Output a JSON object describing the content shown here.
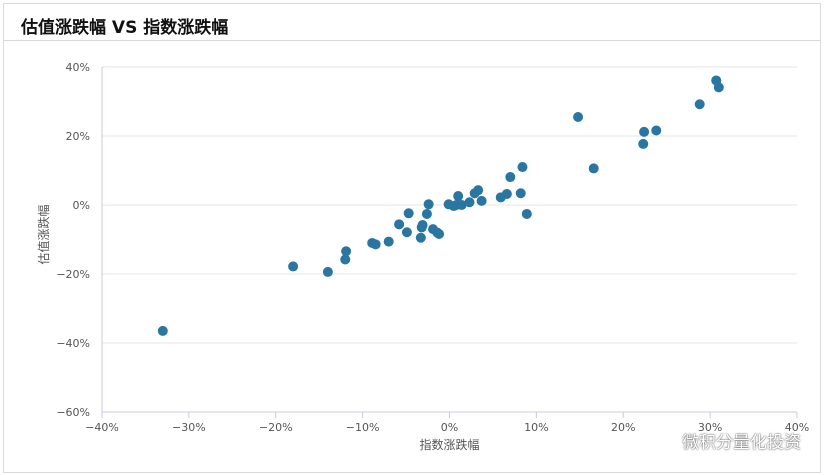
{
  "header": {
    "title": "估值涨跌幅 VS 指数涨跌幅"
  },
  "watermark": {
    "text": "微积分量化投资",
    "icon": "wechat-icon"
  },
  "colors": {
    "point": "#2a76a0",
    "grid": "#e6e6e6",
    "axis": "#c8cbe0"
  },
  "chart_data": {
    "type": "scatter",
    "title": "估值涨跌幅 VS 指数涨跌幅",
    "xlabel": "指数涨跌幅",
    "ylabel": "估值涨跌幅",
    "xlim": [
      -40,
      40
    ],
    "ylim": [
      -60,
      40
    ],
    "x_ticks": [
      -40,
      -30,
      -20,
      -10,
      0,
      10,
      20,
      30,
      40
    ],
    "y_ticks": [
      -60,
      -40,
      -20,
      0,
      20,
      40
    ],
    "x_tick_labels": [
      "−40%",
      "−30%",
      "−20%",
      "−10%",
      "0%",
      "10%",
      "20%",
      "30%",
      "40%"
    ],
    "y_tick_labels": [
      "−60%",
      "−40%",
      "−20%",
      "0%",
      "20%",
      "40%"
    ],
    "grid": "horizontal",
    "legend": "none",
    "points": [
      {
        "x": -33.0,
        "y": -36.5
      },
      {
        "x": -18.0,
        "y": -17.8
      },
      {
        "x": -14.0,
        "y": -19.4
      },
      {
        "x": -11.9,
        "y": -13.4
      },
      {
        "x": -12.0,
        "y": -15.8
      },
      {
        "x": -8.9,
        "y": -11.0
      },
      {
        "x": -8.5,
        "y": -11.4
      },
      {
        "x": -7.0,
        "y": -10.6
      },
      {
        "x": -5.8,
        "y": -5.6
      },
      {
        "x": -4.9,
        "y": -7.9
      },
      {
        "x": -4.7,
        "y": -2.4
      },
      {
        "x": -3.3,
        "y": -9.5
      },
      {
        "x": -3.2,
        "y": -6.5
      },
      {
        "x": -3.1,
        "y": -5.8
      },
      {
        "x": -2.6,
        "y": -2.6
      },
      {
        "x": -2.4,
        "y": 0.2
      },
      {
        "x": -1.9,
        "y": -7.0
      },
      {
        "x": -1.4,
        "y": -8.0
      },
      {
        "x": -1.2,
        "y": -8.4
      },
      {
        "x": -0.1,
        "y": 0.2
      },
      {
        "x": 0.5,
        "y": -0.3
      },
      {
        "x": 0.8,
        "y": 0.0
      },
      {
        "x": 1.0,
        "y": 2.6
      },
      {
        "x": 1.4,
        "y": 0.0
      },
      {
        "x": 2.3,
        "y": 0.8
      },
      {
        "x": 2.9,
        "y": 3.4
      },
      {
        "x": 3.3,
        "y": 4.3
      },
      {
        "x": 3.7,
        "y": 1.2
      },
      {
        "x": 5.9,
        "y": 2.2
      },
      {
        "x": 6.6,
        "y": 3.2
      },
      {
        "x": 7.0,
        "y": 8.1
      },
      {
        "x": 8.2,
        "y": 3.4
      },
      {
        "x": 8.4,
        "y": 11.0
      },
      {
        "x": 8.9,
        "y": -2.6
      },
      {
        "x": 14.8,
        "y": 25.5
      },
      {
        "x": 16.6,
        "y": 10.6
      },
      {
        "x": 22.3,
        "y": 17.7
      },
      {
        "x": 22.4,
        "y": 21.2
      },
      {
        "x": 23.8,
        "y": 21.6
      },
      {
        "x": 28.8,
        "y": 29.2
      },
      {
        "x": 30.7,
        "y": 36.1
      },
      {
        "x": 31.0,
        "y": 34.1
      }
    ]
  }
}
